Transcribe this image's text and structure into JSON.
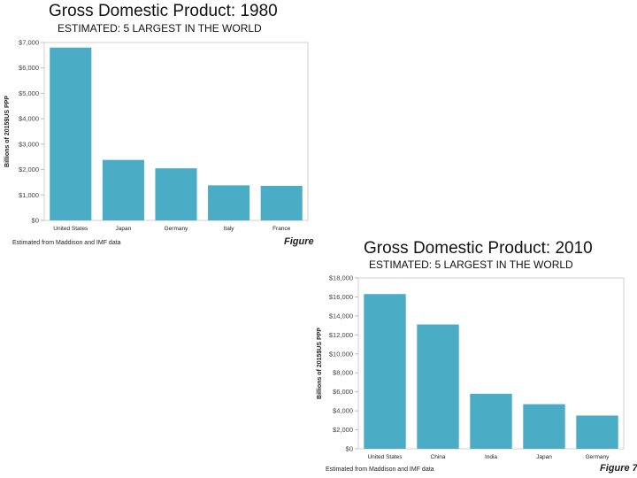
{
  "chart_data": [
    {
      "type": "bar",
      "title": "Gross Domestic Product: 1980",
      "subtitle": "ESTIMATED: 5 LARGEST IN THE WORLD",
      "categories": [
        "United States",
        "Japan",
        "Germany",
        "Italy",
        "France"
      ],
      "values": [
        6800,
        2380,
        2050,
        1380,
        1360
      ],
      "ylabel": "Billions of 2015$US  PPP",
      "xlabel": "",
      "ylim": [
        0,
        7000
      ],
      "yticks": [
        0,
        1000,
        2000,
        3000,
        4000,
        5000,
        6000,
        7000
      ],
      "ytick_labels": [
        "$0",
        "$1,000",
        "$2,000",
        "$3,000",
        "$4,000",
        "$5,000",
        "$6,000",
        "$7,000"
      ],
      "grid": false,
      "bar_color": "#4bacc6",
      "note": "Estimated from Maddison and IMF data",
      "figure_label": "Figure"
    },
    {
      "type": "bar",
      "title": "Gross Domestic Product: 2010",
      "subtitle": "ESTIMATED: 5 LARGEST IN THE WORLD",
      "categories": [
        "United States",
        "China",
        "India",
        "Japan",
        "Germany"
      ],
      "values": [
        16300,
        13100,
        5800,
        4700,
        3500
      ],
      "ylabel": "Billions of 2015$US  PPP",
      "xlabel": "",
      "ylim": [
        0,
        18000
      ],
      "yticks": [
        0,
        2000,
        4000,
        6000,
        8000,
        10000,
        12000,
        14000,
        16000,
        18000
      ],
      "ytick_labels": [
        "$0",
        "$2,000",
        "$4,000",
        "$6,000",
        "$8,000",
        "$10,000",
        "$12,000",
        "$14,000",
        "$16,000",
        "$18,000"
      ],
      "grid": false,
      "bar_color": "#4bacc6",
      "note": "Estimated from Maddison and IMF data",
      "figure_label": "Figure 7"
    }
  ]
}
